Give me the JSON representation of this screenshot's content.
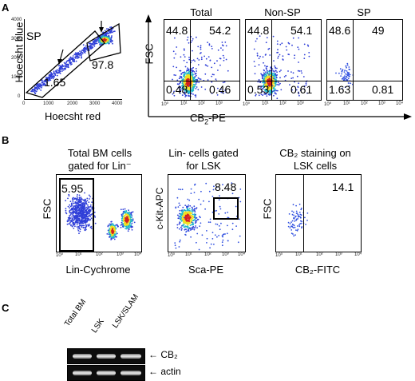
{
  "panel_a": {
    "letter": "A",
    "hoechst": {
      "ylabel": "Hoecsht blue",
      "xlabel": "Hoecsht red",
      "sp_label": "SP",
      "gate_main": "97.8",
      "gate_sp": "1.65",
      "yticks": [
        "0",
        "1000",
        "2000",
        "3000",
        "4000"
      ],
      "xticks": [
        "0",
        "1000",
        "2000",
        "3000",
        "4000"
      ]
    },
    "cb2": {
      "ylabel": "FSC",
      "xlabel": "CB2-PE",
      "xlabel_main": "CB",
      "xlabel_sub": "2",
      "xlabel_tail": "-PE",
      "log_ticks": [
        "10⁰",
        "10¹",
        "10²",
        "10³",
        "10⁴"
      ],
      "plots": [
        {
          "title": "Total",
          "ul": "44.8",
          "ur": "54.2",
          "ll": "0.48",
          "lr": "0.46"
        },
        {
          "title": "Non-SP",
          "ul": "44.8",
          "ur": "54.1",
          "ll": "0.53",
          "lr": "0.61"
        },
        {
          "title": "SP",
          "ul": "48.6",
          "ur": "49",
          "ll": "1.63",
          "lr": "0.81"
        }
      ]
    }
  },
  "panel_b": {
    "letter": "B",
    "plots": [
      {
        "title_line1": "Total BM cells",
        "title_line2": "gated for Lin⁻",
        "ylabel": "FSC",
        "xlabel": "Lin-Cychrome",
        "gate_value": "5.95"
      },
      {
        "title_line1": "Lin- cells gated",
        "title_line2": "for  LSK",
        "ylabel": "c-Kit-APC",
        "xlabel": "Sca-PE",
        "gate_value": "8.48"
      },
      {
        "title_line1": "CB₂ staining on",
        "title_line2": "LSK cells",
        "ylabel": "FSC",
        "xlabel": "CB₂-FITC",
        "gate_value": "14.1"
      }
    ],
    "log_ticks": [
      "10⁰",
      "10¹",
      "10²",
      "10³",
      "10⁴"
    ]
  },
  "panel_c": {
    "letter": "C",
    "lanes": [
      "Total BM",
      "LSK",
      "LSK/SLAM"
    ],
    "bands": [
      {
        "label": "CB₂"
      },
      {
        "label": "actin"
      }
    ]
  }
}
